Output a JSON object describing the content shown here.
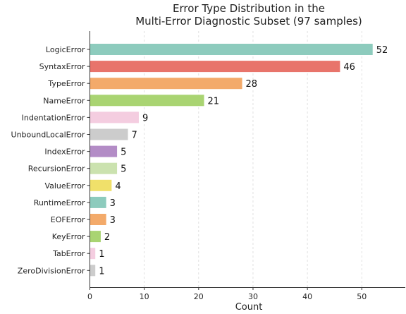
{
  "chart_data": {
    "type": "bar",
    "orientation": "horizontal",
    "title_lines": [
      "Error Type Distribution in the",
      "Multi-Error Diagnostic Subset (97 samples)"
    ],
    "xlabel": "Count",
    "ylabel": "",
    "xlim": [
      0,
      58
    ],
    "xticks": [
      0,
      10,
      20,
      30,
      40,
      50
    ],
    "grid": "x-dashed",
    "categories": [
      "LogicError",
      "SyntaxError",
      "TypeError",
      "NameError",
      "IndentationError",
      "UnboundLocalError",
      "IndexError",
      "RecursionError",
      "ValueError",
      "RuntimeError",
      "EOFError",
      "KeyError",
      "TabError",
      "ZeroDivisionError"
    ],
    "values": [
      52,
      46,
      28,
      21,
      9,
      7,
      5,
      5,
      4,
      3,
      3,
      2,
      1,
      1
    ],
    "colors": [
      "#8dcbbd",
      "#e8746b",
      "#f3aa6a",
      "#a9d472",
      "#f4cde0",
      "#cccccc",
      "#b38cc6",
      "#cbe2af",
      "#f0e06a",
      "#8dcbbd",
      "#f3aa6a",
      "#a9d472",
      "#f4cde0",
      "#cccccc"
    ]
  }
}
